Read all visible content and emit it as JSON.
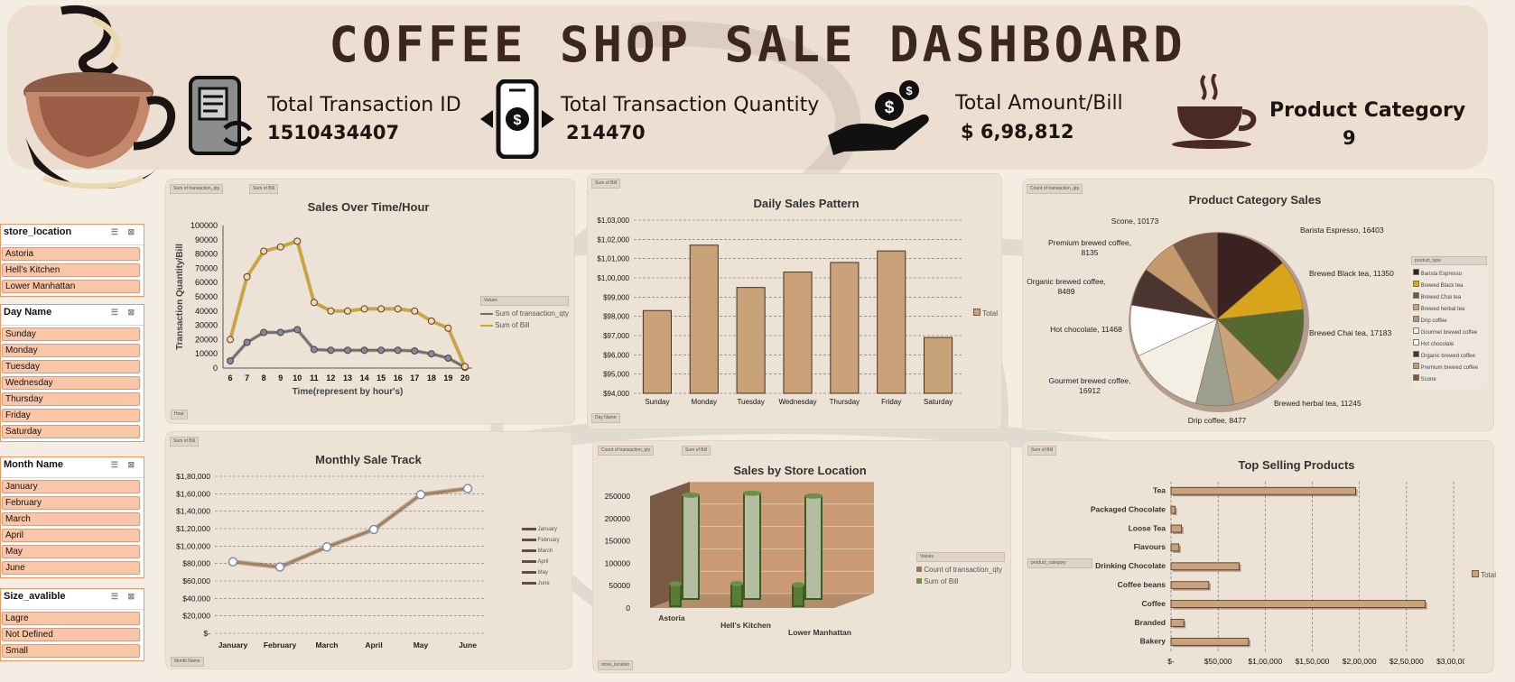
{
  "title": "COFFEE SHOP SALE DASHBOARD",
  "kpis": {
    "transaction_id_label": "Total Transaction ID",
    "transaction_id_value": "1510434407",
    "quantity_label": "Total Transaction Quantity",
    "quantity_value": "214470",
    "amount_label": "Total Amount/Bill",
    "amount_value": "$  6,98,812",
    "category_label": "Product Category",
    "category_value": "9"
  },
  "slicers": {
    "store": {
      "title": "store_location",
      "items": [
        "Astoria",
        "Hell's Kitchen",
        "Lower Manhattan"
      ]
    },
    "day": {
      "title": "Day Name",
      "items": [
        "Sunday",
        "Monday",
        "Tuesday",
        "Wednesday",
        "Thursday",
        "Friday",
        "Saturday"
      ]
    },
    "month": {
      "title": "Month Name",
      "items": [
        "January",
        "February",
        "March",
        "April",
        "May",
        "June"
      ]
    },
    "size": {
      "title": "Size_avalible",
      "items": [
        "Lagre",
        "Not Defined",
        "Small"
      ]
    }
  },
  "tags": {
    "sum_qty": "Sum of transaction_qty",
    "sum_bill": "Sum of Bill",
    "count_qty": "Count of transaction_qty",
    "hour": "Hour",
    "day_name": "Day Name",
    "month_name": "Month Name",
    "store_location": "store_location",
    "product_type": "product_type",
    "product_category": "product_category",
    "values": "Values",
    "total": "Total"
  },
  "colors": {
    "brown": "#c9a27a",
    "gold": "#d8a419",
    "green": "#6c8f4a",
    "dark": "#3b2620"
  },
  "chart_data": [
    {
      "id": "hourly",
      "type": "line",
      "title": "Sales Over Time/Hour",
      "xlabel": "Time(represent by hour's)",
      "ylabel": "Transaction Quantity/Bill",
      "x": [
        6,
        7,
        8,
        9,
        10,
        11,
        12,
        13,
        14,
        15,
        16,
        17,
        18,
        19,
        20
      ],
      "ylim": [
        0,
        100000
      ],
      "yticks": [
        "0",
        "10000",
        "20000",
        "30000",
        "40000",
        "50000",
        "60000",
        "70000",
        "80000",
        "90000",
        "100000"
      ],
      "series": [
        {
          "name": "Sum of transaction_qty",
          "values": [
            5000,
            18000,
            25000,
            25000,
            27000,
            13000,
            12500,
            12500,
            12500,
            12500,
            12500,
            12000,
            10000,
            7000,
            500
          ]
        },
        {
          "name": "Sum of Bill",
          "values": [
            20000,
            64000,
            82000,
            85000,
            89000,
            46000,
            40000,
            40000,
            41500,
            41500,
            41500,
            40000,
            33000,
            28000,
            1000
          ]
        }
      ]
    },
    {
      "id": "daily",
      "type": "bar",
      "title": "Daily Sales Pattern",
      "categories": [
        "Sunday",
        "Monday",
        "Tuesday",
        "Wednesday",
        "Thursday",
        "Friday",
        "Saturday"
      ],
      "values": [
        98300,
        101700,
        99500,
        100300,
        100800,
        101400,
        96900
      ],
      "ylim": [
        94000,
        103000
      ],
      "yticks": [
        "$94,000",
        "$95,000",
        "$96,000",
        "$97,000",
        "$98,000",
        "$99,000",
        "$1,00,000",
        "$1,01,000",
        "$1,02,000",
        "$1,03,000"
      ],
      "legend": [
        "Total"
      ]
    },
    {
      "id": "category",
      "type": "pie",
      "title": "Product Category Sales",
      "slices": [
        {
          "label": "Barista Espresso",
          "value": 16403,
          "color": "#3a2220"
        },
        {
          "label": "Brewed Black tea",
          "value": 11350,
          "color": "#d8a419"
        },
        {
          "label": "Brewed Chai tea",
          "value": 17183,
          "color": "#56692e"
        },
        {
          "label": "Brewed herbal tea",
          "value": 11245,
          "color": "#c9a27a"
        },
        {
          "label": "Drip coffee",
          "value": 8477,
          "color": "#9c9f8c"
        },
        {
          "label": "Gourmet brewed coffee",
          "value": 16912,
          "color": "#f4efe4"
        },
        {
          "label": "Hot chocolate",
          "value": 11468,
          "color": "#ffffff"
        },
        {
          "label": "Organic brewed coffee",
          "value": 8489,
          "color": "#4a3530"
        },
        {
          "label": "Premium brewed coffee",
          "value": 8135,
          "color": "#c49a6c"
        },
        {
          "label": "Scone",
          "value": 10173,
          "color": "#7a5a45"
        }
      ],
      "data_labels": [
        "Barista Espresso, 16403",
        "Brewed Black tea, 11350",
        "Brewed Chai tea, 17183",
        "Brewed herbal tea, 11245",
        "Drip coffee, 8477",
        "Gourmet brewed coffee,",
        "16912",
        "Hot chocolate, 11468",
        "Organic brewed coffee,",
        "8489",
        "Premium brewed coffee,",
        "8135",
        "Scone, 10173"
      ]
    },
    {
      "id": "monthly",
      "type": "line",
      "title": "Monthly Sale Track",
      "categories": [
        "January",
        "February",
        "March",
        "April",
        "May",
        "June"
      ],
      "values": [
        82000,
        76000,
        99000,
        119000,
        159000,
        166000
      ],
      "ylim": [
        0,
        180000
      ],
      "yticks": [
        "$-",
        "$20,000",
        "$40,000",
        "$60,000",
        "$80,000",
        "$1,00,000",
        "$1,20,000",
        "$1,40,000",
        "$1,60,000",
        "$1,80,000"
      ],
      "legend": [
        "January",
        "February",
        "March",
        "April",
        "May",
        "June"
      ]
    },
    {
      "id": "store",
      "type": "bar",
      "title": "Sales by Store Location",
      "categories": [
        "Astoria",
        "Hell's Kitchen",
        "Lower Manhattan"
      ],
      "series": [
        {
          "name": "Count of transaction_qty",
          "values": [
            50000,
            50500,
            47800
          ]
        },
        {
          "name": "Sum of Bill",
          "values": [
            232200,
            236500,
            230100
          ]
        }
      ],
      "ylim": [
        0,
        250000
      ],
      "yticks": [
        "0",
        "50000",
        "100000",
        "150000",
        "200000",
        "250000"
      ]
    },
    {
      "id": "products",
      "type": "bar",
      "title": "Top Selling Products",
      "categories": [
        "Tea",
        "Packaged Chocolate",
        "Loose Tea",
        "Flavours",
        "Drinking Chocolate",
        "Coffee beans",
        "Coffee",
        "Branded",
        "Bakery"
      ],
      "values": [
        196000,
        4400,
        11200,
        8400,
        72400,
        40100,
        269900,
        13600,
        82300
      ],
      "xlim": [
        0,
        300000
      ],
      "xticks": [
        "$-",
        "$50,000",
        "$1,00,000",
        "$1,50,000",
        "$2,00,000",
        "$2,50,000",
        "$3,00,000"
      ],
      "legend": [
        "Total"
      ]
    }
  ]
}
